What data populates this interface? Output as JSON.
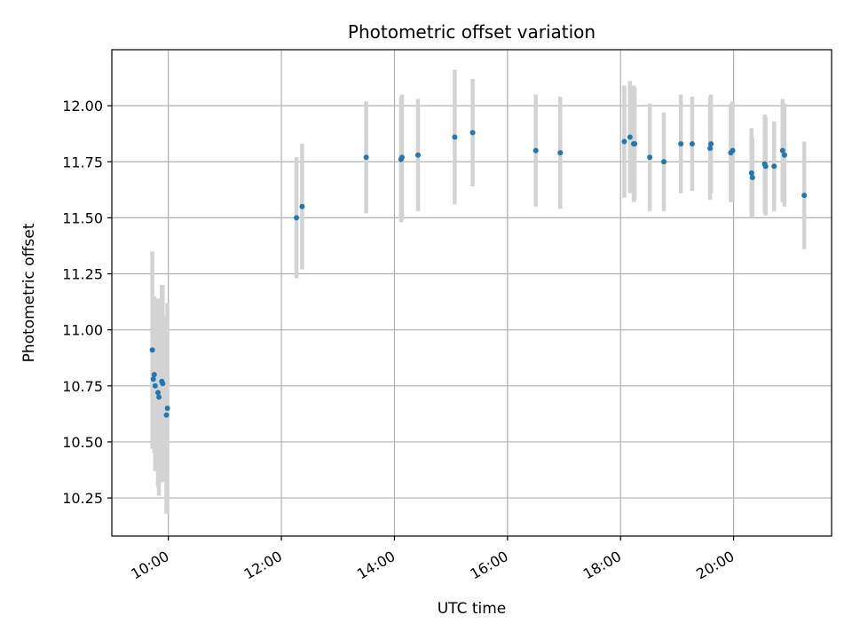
{
  "chart_data": {
    "type": "scatter",
    "title": "Photometric offset variation",
    "xlabel": "UTC time",
    "ylabel": "Photometric offset",
    "x_is_time": true,
    "xlim": [
      "09:00",
      "21:44"
    ],
    "ylim": [
      10.08,
      12.25
    ],
    "xticks": [
      "10:00",
      "12:00",
      "14:00",
      "16:00",
      "18:00",
      "20:00"
    ],
    "yticks": [
      10.25,
      10.5,
      10.75,
      11.0,
      11.25,
      11.5,
      11.75,
      12.0
    ],
    "ytick_labels": [
      "10.25",
      "10.50",
      "10.75",
      "11.00",
      "11.25",
      "11.50",
      "11.75",
      "12.00"
    ],
    "grid": true,
    "colors": {
      "point": "#1f77b4",
      "errorbar": "#d3d3d3",
      "grid": "#b0b0b0",
      "axis": "#000000"
    },
    "points": [
      {
        "x": "09:43",
        "y": 10.91,
        "err": 0.44
      },
      {
        "x": "09:44",
        "y": 10.78,
        "err": 0.28
      },
      {
        "x": "09:45",
        "y": 10.8,
        "err": 0.35
      },
      {
        "x": "09:46",
        "y": 10.75,
        "err": 0.38
      },
      {
        "x": "09:49",
        "y": 10.72,
        "err": 0.42
      },
      {
        "x": "09:50",
        "y": 10.7,
        "err": 0.44
      },
      {
        "x": "09:53",
        "y": 10.77,
        "err": 0.43
      },
      {
        "x": "09:54",
        "y": 10.76,
        "err": 0.44
      },
      {
        "x": "09:58",
        "y": 10.62,
        "err": 0.44
      },
      {
        "x": "09:59",
        "y": 10.65,
        "err": 0.47
      },
      {
        "x": "12:16",
        "y": 11.5,
        "err": 0.27
      },
      {
        "x": "12:22",
        "y": 11.55,
        "err": 0.28
      },
      {
        "x": "13:30",
        "y": 11.77,
        "err": 0.25
      },
      {
        "x": "14:07",
        "y": 11.76,
        "err": 0.28
      },
      {
        "x": "14:08",
        "y": 11.77,
        "err": 0.28
      },
      {
        "x": "14:25",
        "y": 11.78,
        "err": 0.25
      },
      {
        "x": "15:04",
        "y": 11.86,
        "err": 0.3
      },
      {
        "x": "15:23",
        "y": 11.88,
        "err": 0.24
      },
      {
        "x": "16:30",
        "y": 11.8,
        "err": 0.25
      },
      {
        "x": "16:56",
        "y": 11.79,
        "err": 0.25
      },
      {
        "x": "18:04",
        "y": 11.84,
        "err": 0.25
      },
      {
        "x": "18:10",
        "y": 11.86,
        "err": 0.25
      },
      {
        "x": "18:14",
        "y": 11.83,
        "err": 0.26
      },
      {
        "x": "18:15",
        "y": 11.83,
        "err": 0.25
      },
      {
        "x": "18:31",
        "y": 11.77,
        "err": 0.24
      },
      {
        "x": "18:46",
        "y": 11.75,
        "err": 0.22
      },
      {
        "x": "19:04",
        "y": 11.83,
        "err": 0.22
      },
      {
        "x": "19:16",
        "y": 11.83,
        "err": 0.21
      },
      {
        "x": "19:35",
        "y": 11.81,
        "err": 0.23
      },
      {
        "x": "19:36",
        "y": 11.83,
        "err": 0.22
      },
      {
        "x": "19:57",
        "y": 11.79,
        "err": 0.22
      },
      {
        "x": "19:59",
        "y": 11.8,
        "err": 0.22
      },
      {
        "x": "20:19",
        "y": 11.7,
        "err": 0.2
      },
      {
        "x": "20:20",
        "y": 11.68,
        "err": 0.18
      },
      {
        "x": "20:33",
        "y": 11.74,
        "err": 0.22
      },
      {
        "x": "20:34",
        "y": 11.73,
        "err": 0.22
      },
      {
        "x": "20:43",
        "y": 11.73,
        "err": 0.2
      },
      {
        "x": "20:52",
        "y": 11.8,
        "err": 0.23
      },
      {
        "x": "20:54",
        "y": 11.78,
        "err": 0.23
      },
      {
        "x": "21:15",
        "y": 11.6,
        "err": 0.24
      }
    ]
  }
}
